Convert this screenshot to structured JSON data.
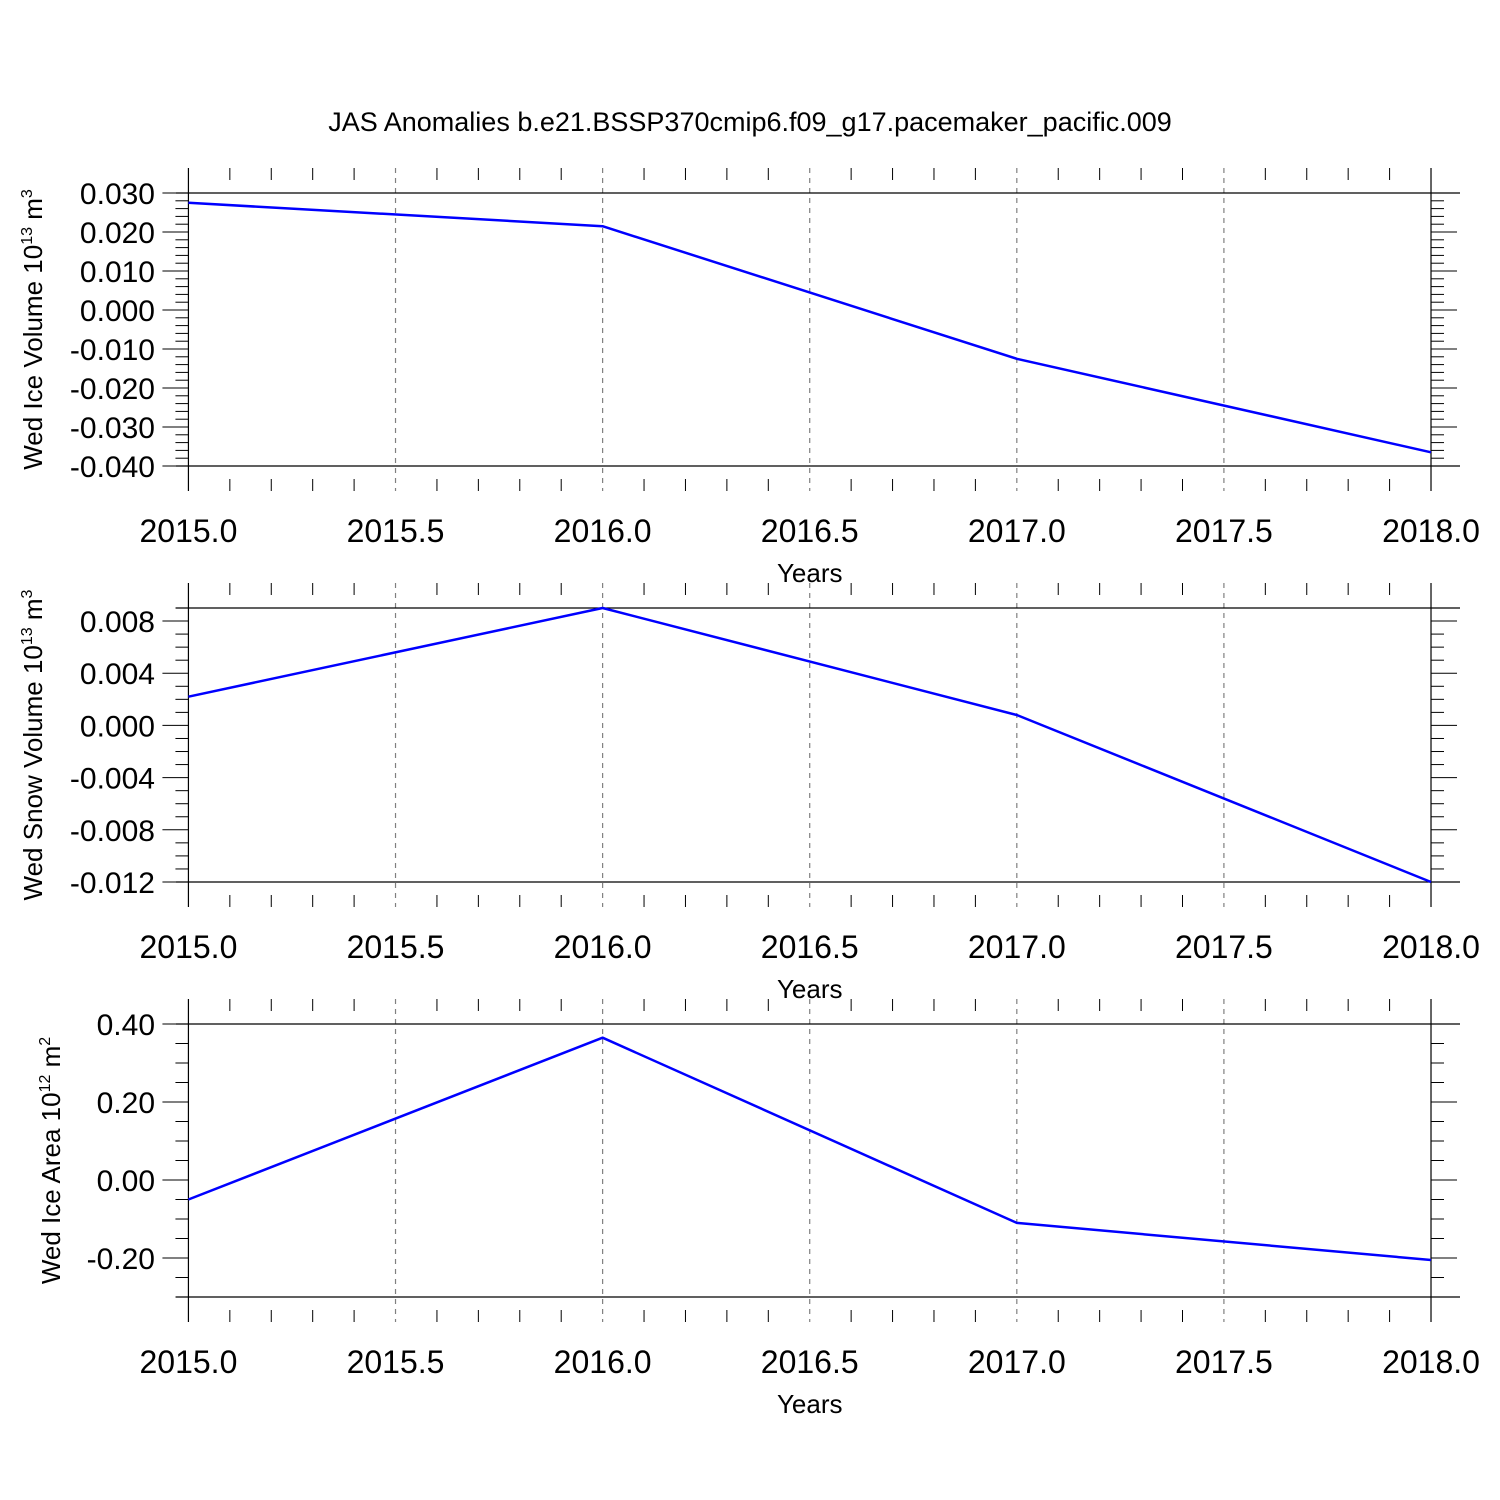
{
  "title": "JAS Anomalies b.e21.BSSP370cmip6.f09_g17.pacemaker_pacific.009",
  "colors": {
    "line": "#0000ff",
    "axis": "#000000",
    "grid": "#808080",
    "background": "#ffffff"
  },
  "chart_data": [
    {
      "type": "line",
      "xlabel": "Years",
      "ylabel": {
        "text": "Wed Ice Volume 10",
        "exponent": "13",
        "unit": " m",
        "unit_exponent": "3"
      },
      "x": [
        2015,
        2016,
        2017,
        2018
      ],
      "y": [
        0.0275,
        0.0215,
        -0.0125,
        -0.0365
      ],
      "xlim": [
        2014.97,
        2018.07
      ],
      "ylim": [
        -0.04,
        0.03
      ],
      "x_ticks": [
        2015.0,
        2015.5,
        2016.0,
        2016.5,
        2017.0,
        2017.5,
        2018.0
      ],
      "x_tick_labels": [
        "2015.0",
        "2015.5",
        "2016.0",
        "2016.5",
        "2017.0",
        "2017.5",
        "2018.0"
      ],
      "x_minor_step": 0.1,
      "y_ticks": [
        0.03,
        0.02,
        0.01,
        0.0,
        -0.01,
        -0.02,
        -0.03,
        -0.04
      ],
      "y_tick_labels": [
        "0.030",
        "0.020",
        "0.010",
        "0.000",
        "-0.010",
        "-0.020",
        "-0.030",
        "-0.040"
      ],
      "y_minor_step": 0.002,
      "grid": "vertical dashed at major x ticks"
    },
    {
      "type": "line",
      "xlabel": "Years",
      "ylabel": {
        "text": "Wed Snow Volume 10",
        "exponent": "13",
        "unit": " m",
        "unit_exponent": "3"
      },
      "x": [
        2015,
        2016,
        2017,
        2018
      ],
      "y": [
        0.0022,
        0.009,
        0.0008,
        -0.012
      ],
      "xlim": [
        2014.97,
        2018.07
      ],
      "ylim": [
        -0.012,
        0.009
      ],
      "x_ticks": [
        2015.0,
        2015.5,
        2016.0,
        2016.5,
        2017.0,
        2017.5,
        2018.0
      ],
      "x_tick_labels": [
        "2015.0",
        "2015.5",
        "2016.0",
        "2016.5",
        "2017.0",
        "2017.5",
        "2018.0"
      ],
      "x_minor_step": 0.1,
      "y_ticks": [
        0.008,
        0.004,
        0.0,
        -0.004,
        -0.008,
        -0.012
      ],
      "y_tick_labels": [
        "0.008",
        "0.004",
        "0.000",
        "-0.004",
        "-0.008",
        "-0.012"
      ],
      "y_minor_step": 0.001,
      "grid": "vertical dashed at major x ticks"
    },
    {
      "type": "line",
      "xlabel": "Years",
      "ylabel": {
        "text": "Wed Ice Area 10",
        "exponent": "12",
        "unit": " m",
        "unit_exponent": "2"
      },
      "x": [
        2015,
        2016,
        2017,
        2018
      ],
      "y": [
        -0.05,
        0.365,
        -0.11,
        -0.205
      ],
      "xlim": [
        2014.97,
        2018.07
      ],
      "ylim": [
        -0.3,
        0.4
      ],
      "x_ticks": [
        2015.0,
        2015.5,
        2016.0,
        2016.5,
        2017.0,
        2017.5,
        2018.0
      ],
      "x_tick_labels": [
        "2015.0",
        "2015.5",
        "2016.0",
        "2016.5",
        "2017.0",
        "2017.5",
        "2018.0"
      ],
      "x_minor_step": 0.1,
      "y_ticks": [
        0.4,
        0.2,
        0.0,
        -0.2
      ],
      "y_tick_labels": [
        "0.40",
        "0.20",
        "0.00",
        "-0.20"
      ],
      "y_minor_step": 0.05,
      "grid": "vertical dashed at major x ticks"
    }
  ]
}
